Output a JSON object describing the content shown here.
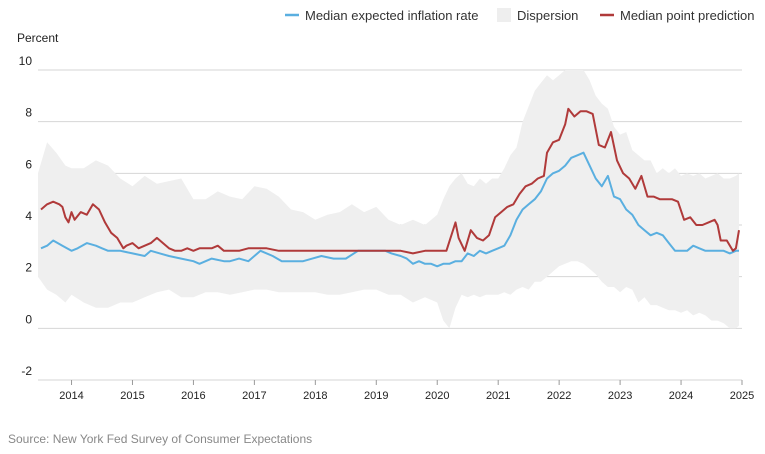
{
  "chart_data": {
    "type": "line",
    "ylabel": "Percent",
    "ylim": [
      -2,
      10
    ],
    "yticks": [
      10,
      8,
      6,
      4,
      2,
      0,
      -2
    ],
    "xlim": [
      2013.45,
      2025.0
    ],
    "xticks": [
      "2014",
      "2015",
      "2016",
      "2017",
      "2018",
      "2019",
      "2020",
      "2021",
      "2022",
      "2023",
      "2024",
      "2025"
    ],
    "legend": [
      {
        "key": "median",
        "label": "Median expected inflation rate",
        "color": "#5aafe0"
      },
      {
        "key": "dispersion",
        "label": "Dispersion",
        "color": "#eeeeee"
      },
      {
        "key": "point",
        "label": "Median point prediction",
        "color": "#b03a3a"
      }
    ],
    "series": [
      {
        "name": "Median expected inflation rate",
        "x": [
          2013.5,
          2013.6,
          2013.7,
          2013.85,
          2014.0,
          2014.1,
          2014.25,
          2014.4,
          2014.5,
          2014.6,
          2014.8,
          2015.0,
          2015.2,
          2015.3,
          2015.45,
          2015.6,
          2015.8,
          2016.0,
          2016.1,
          2016.3,
          2016.5,
          2016.6,
          2016.75,
          2016.9,
          2017.0,
          2017.1,
          2017.3,
          2017.45,
          2017.6,
          2017.8,
          2017.95,
          2018.1,
          2018.3,
          2018.5,
          2018.7,
          2018.9,
          2019.0,
          2019.15,
          2019.25,
          2019.4,
          2019.5,
          2019.6,
          2019.7,
          2019.8,
          2019.9,
          2020.0,
          2020.1,
          2020.2,
          2020.3,
          2020.4,
          2020.5,
          2020.6,
          2020.7,
          2020.8,
          2020.9,
          2021.0,
          2021.1,
          2021.2,
          2021.3,
          2021.4,
          2021.5,
          2021.6,
          2021.7,
          2021.8,
          2021.9,
          2022.0,
          2022.1,
          2022.2,
          2022.3,
          2022.4,
          2022.5,
          2022.6,
          2022.7,
          2022.8,
          2022.9,
          2023.0,
          2023.1,
          2023.2,
          2023.3,
          2023.4,
          2023.5,
          2023.6,
          2023.7,
          2023.8,
          2023.9,
          2024.0,
          2024.1,
          2024.2,
          2024.3,
          2024.4,
          2024.5,
          2024.6,
          2024.7,
          2024.8,
          2024.9,
          2024.95
        ],
        "values": [
          3.1,
          3.2,
          3.4,
          3.2,
          3.0,
          3.1,
          3.3,
          3.2,
          3.1,
          3.0,
          3.0,
          2.9,
          2.8,
          3.0,
          2.9,
          2.8,
          2.7,
          2.6,
          2.5,
          2.7,
          2.6,
          2.6,
          2.7,
          2.6,
          2.8,
          3.0,
          2.8,
          2.6,
          2.6,
          2.6,
          2.7,
          2.8,
          2.7,
          2.7,
          3.0,
          3.0,
          3.0,
          3.0,
          2.9,
          2.8,
          2.7,
          2.5,
          2.6,
          2.5,
          2.5,
          2.4,
          2.5,
          2.5,
          2.6,
          2.6,
          2.9,
          2.8,
          3.0,
          2.9,
          3.0,
          3.1,
          3.2,
          3.6,
          4.2,
          4.6,
          4.8,
          5.0,
          5.3,
          5.8,
          6.0,
          6.1,
          6.3,
          6.6,
          6.7,
          6.8,
          6.3,
          5.8,
          5.5,
          5.9,
          5.1,
          5.0,
          4.6,
          4.4,
          4.0,
          3.8,
          3.6,
          3.7,
          3.6,
          3.3,
          3.0,
          3.0,
          3.0,
          3.2,
          3.1,
          3.0,
          3.0,
          3.0,
          3.0,
          2.9,
          3.0,
          3.0
        ]
      },
      {
        "name": "Median point prediction",
        "x": [
          2013.5,
          2013.6,
          2013.7,
          2013.8,
          2013.85,
          2013.9,
          2013.95,
          2014.0,
          2014.05,
          2014.15,
          2014.25,
          2014.35,
          2014.45,
          2014.55,
          2014.65,
          2014.75,
          2014.85,
          2014.9,
          2015.0,
          2015.1,
          2015.2,
          2015.3,
          2015.4,
          2015.5,
          2015.6,
          2015.7,
          2015.8,
          2015.9,
          2016.0,
          2016.1,
          2016.2,
          2016.3,
          2016.4,
          2016.5,
          2016.6,
          2016.75,
          2016.9,
          2017.0,
          2017.2,
          2017.4,
          2017.6,
          2017.8,
          2018.0,
          2018.2,
          2018.4,
          2018.6,
          2018.8,
          2019.0,
          2019.2,
          2019.4,
          2019.6,
          2019.8,
          2020.0,
          2020.15,
          2020.3,
          2020.35,
          2020.45,
          2020.55,
          2020.65,
          2020.75,
          2020.85,
          2020.95,
          2021.05,
          2021.15,
          2021.25,
          2021.35,
          2021.45,
          2021.55,
          2021.65,
          2021.75,
          2021.8,
          2021.9,
          2022.0,
          2022.1,
          2022.15,
          2022.25,
          2022.35,
          2022.45,
          2022.55,
          2022.65,
          2022.75,
          2022.85,
          2022.95,
          2023.05,
          2023.15,
          2023.25,
          2023.35,
          2023.45,
          2023.55,
          2023.65,
          2023.75,
          2023.85,
          2023.95,
          2024.05,
          2024.15,
          2024.25,
          2024.35,
          2024.45,
          2024.55,
          2024.6,
          2024.65,
          2024.75,
          2024.85,
          2024.9,
          2024.95
        ],
        "values": [
          4.6,
          4.8,
          4.9,
          4.8,
          4.7,
          4.3,
          4.1,
          4.5,
          4.2,
          4.5,
          4.4,
          4.8,
          4.6,
          4.1,
          3.7,
          3.5,
          3.1,
          3.2,
          3.3,
          3.1,
          3.2,
          3.3,
          3.5,
          3.3,
          3.1,
          3.0,
          3.0,
          3.1,
          3.0,
          3.1,
          3.1,
          3.1,
          3.2,
          3.0,
          3.0,
          3.0,
          3.1,
          3.1,
          3.1,
          3.0,
          3.0,
          3.0,
          3.0,
          3.0,
          3.0,
          3.0,
          3.0,
          3.0,
          3.0,
          3.0,
          2.9,
          3.0,
          3.0,
          3.0,
          4.1,
          3.5,
          3.0,
          3.8,
          3.5,
          3.4,
          3.6,
          4.3,
          4.5,
          4.7,
          4.8,
          5.2,
          5.5,
          5.6,
          5.8,
          5.9,
          6.8,
          7.2,
          7.3,
          7.9,
          8.5,
          8.2,
          8.4,
          8.4,
          8.3,
          7.1,
          7.0,
          7.6,
          6.5,
          6.0,
          5.8,
          5.4,
          5.9,
          5.1,
          5.1,
          5.0,
          5.0,
          5.0,
          4.9,
          4.2,
          4.3,
          4.0,
          4.0,
          4.1,
          4.2,
          4.0,
          3.4,
          3.4,
          3.0,
          3.1,
          3.8
        ]
      },
      {
        "name": "Dispersion",
        "x": [
          2013.45,
          2013.6,
          2013.75,
          2013.9,
          2014.0,
          2014.2,
          2014.4,
          2014.6,
          2014.8,
          2015.0,
          2015.2,
          2015.4,
          2015.6,
          2015.8,
          2016.0,
          2016.2,
          2016.4,
          2016.6,
          2016.8,
          2017.0,
          2017.2,
          2017.4,
          2017.6,
          2017.8,
          2018.0,
          2018.2,
          2018.4,
          2018.6,
          2018.8,
          2019.0,
          2019.2,
          2019.4,
          2019.6,
          2019.8,
          2020.0,
          2020.1,
          2020.2,
          2020.3,
          2020.4,
          2020.5,
          2020.6,
          2020.7,
          2020.8,
          2020.9,
          2021.0,
          2021.1,
          2021.2,
          2021.3,
          2021.4,
          2021.5,
          2021.6,
          2021.7,
          2021.8,
          2021.9,
          2022.0,
          2022.1,
          2022.2,
          2022.3,
          2022.4,
          2022.5,
          2022.6,
          2022.7,
          2022.8,
          2022.9,
          2023.0,
          2023.1,
          2023.2,
          2023.3,
          2023.4,
          2023.5,
          2023.6,
          2023.7,
          2023.8,
          2023.9,
          2024.0,
          2024.1,
          2024.2,
          2024.3,
          2024.4,
          2024.5,
          2024.6,
          2024.7,
          2024.8,
          2024.9,
          2024.95
        ],
        "upper": [
          6.0,
          7.2,
          6.8,
          6.3,
          6.2,
          6.2,
          6.5,
          6.3,
          5.8,
          5.5,
          5.9,
          5.6,
          5.7,
          5.8,
          5.0,
          5.0,
          5.3,
          5.1,
          5.0,
          5.5,
          5.4,
          5.1,
          4.6,
          4.5,
          4.2,
          4.4,
          4.5,
          4.8,
          4.5,
          4.7,
          4.2,
          4.0,
          4.2,
          4.0,
          4.4,
          5.0,
          5.5,
          5.8,
          6.0,
          5.6,
          5.5,
          5.8,
          5.6,
          5.8,
          5.8,
          6.2,
          6.7,
          7.0,
          8.0,
          8.6,
          9.2,
          9.5,
          9.8,
          9.6,
          9.8,
          10.0,
          10.0,
          10.0,
          10.0,
          9.6,
          9.0,
          8.7,
          8.5,
          7.8,
          7.5,
          7.6,
          6.9,
          6.7,
          6.5,
          6.5,
          6.0,
          6.2,
          6.0,
          6.2,
          5.9,
          6.0,
          5.9,
          6.0,
          5.8,
          5.9,
          6.0,
          5.8,
          5.8,
          5.9,
          6.0
        ],
        "lower": [
          2.0,
          1.5,
          1.3,
          1.0,
          1.3,
          1.0,
          0.8,
          0.8,
          1.0,
          1.0,
          1.2,
          1.4,
          1.5,
          1.2,
          1.2,
          1.4,
          1.4,
          1.3,
          1.4,
          1.5,
          1.5,
          1.4,
          1.4,
          1.4,
          1.4,
          1.3,
          1.3,
          1.4,
          1.5,
          1.5,
          1.3,
          1.3,
          1.0,
          1.2,
          1.0,
          0.3,
          0.0,
          0.8,
          1.3,
          1.2,
          1.3,
          1.2,
          1.3,
          1.3,
          1.3,
          1.4,
          1.3,
          1.5,
          1.6,
          1.5,
          1.8,
          1.8,
          2.0,
          2.2,
          2.4,
          2.5,
          2.6,
          2.6,
          2.5,
          2.3,
          2.1,
          1.8,
          1.6,
          1.6,
          1.4,
          1.6,
          1.5,
          1.0,
          1.2,
          0.9,
          0.9,
          0.8,
          0.7,
          0.7,
          0.6,
          0.7,
          0.5,
          0.6,
          0.5,
          0.3,
          0.3,
          0.2,
          0.0,
          0.0,
          0.1
        ]
      }
    ]
  },
  "source_text": "Source: New York Fed Survey of Consumer Expectations"
}
